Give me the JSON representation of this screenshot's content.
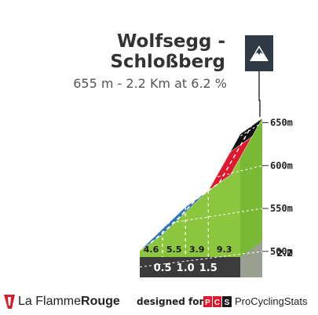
{
  "climb": {
    "name_line1": "Wolfsegg -",
    "name_line2": "Schloßberg",
    "summary": "655 m - 2.2 Km at 6.2 %"
  },
  "summit_icon": "mountain-summit-icon",
  "chart_data": {
    "type": "area",
    "x_unit": "km",
    "y_unit": "m",
    "km_markers": [
      "0.5",
      "1.0",
      "1.5"
    ],
    "km_marker_values": [
      0.5,
      1.0,
      1.5
    ],
    "end_distance_label": "2.2",
    "end_distance": 2.2,
    "elevation_ticks": [
      "650m",
      "600m",
      "550m",
      "500m"
    ],
    "elevation_tick_values": [
      650,
      600,
      550,
      500
    ],
    "ylim": [
      519,
      655
    ],
    "segments": [
      {
        "from_km": 0.0,
        "to_km": 0.5,
        "gradient": 4.6,
        "label": "4.6",
        "color": "#2f75b5"
      },
      {
        "from_km": 0.5,
        "to_km": 1.0,
        "gradient": 5.5,
        "label": "5.5",
        "color": "#2f75b5"
      },
      {
        "from_km": 1.0,
        "to_km": 1.5,
        "gradient": 3.9,
        "label": "3.9",
        "color": "#8cc63f"
      },
      {
        "from_km": 1.5,
        "to_km": 2.2,
        "gradient": 9.3,
        "label": "9.3",
        "color": "#e0182d"
      }
    ],
    "profile": [
      {
        "km": 0.0,
        "elev": 519
      },
      {
        "km": 0.5,
        "elev": 542
      },
      {
        "km": 1.0,
        "elev": 570
      },
      {
        "km": 1.5,
        "elev": 589
      },
      {
        "km": 1.98,
        "elev": 634
      },
      {
        "km": 2.2,
        "elev": 655
      }
    ],
    "top_colors": [
      {
        "from_km": 0.0,
        "to_km": 1.0,
        "color": "#2f75b5"
      },
      {
        "from_km": 1.0,
        "to_km": 1.5,
        "color": "#8cc63f"
      },
      {
        "from_km": 1.5,
        "to_km": 1.98,
        "color": "#e0182d"
      },
      {
        "from_km": 1.98,
        "to_km": 2.2,
        "color": "#111111"
      }
    ]
  },
  "footer": {
    "brand_light": "La Flamme",
    "brand_bold": "Rouge",
    "designed_for": "designed for",
    "pcs_badge": "PCS",
    "pcs_name": "ProCyclingStats"
  }
}
